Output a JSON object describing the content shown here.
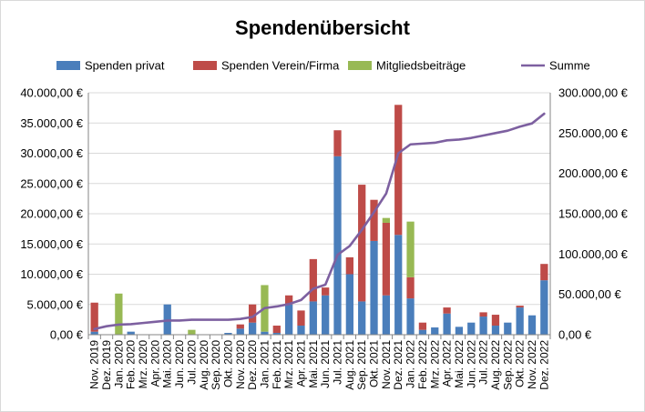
{
  "chart_data": {
    "type": "bar",
    "stacked": true,
    "title": "Spendenübersicht",
    "legend_position": "top",
    "grid": "horizontal",
    "colors": {
      "Spenden privat": "#4a7ebb",
      "Spenden Verein/Firma": "#be4b48",
      "Mitgliedsbeiträge": "#98b954",
      "Summe": "#7d60a0"
    },
    "categories": [
      "Nov. 2019",
      "Dez. 2019",
      "Jan. 2020",
      "Feb. 2020",
      "Mrz. 2020",
      "Apr. 2020",
      "Mai. 2020",
      "Jun. 2020",
      "Jul. 2020",
      "Aug. 2020",
      "Sep. 2020",
      "Okt. 2020",
      "Nov. 2020",
      "Dez. 2020",
      "Jan. 2021",
      "Feb. 2021",
      "Mrz. 2021",
      "Apr. 2021",
      "Mai. 2021",
      "Jun. 2021",
      "Jul. 2021",
      "Aug. 2021",
      "Sep. 2021",
      "Okt. 2021",
      "Nov. 2021",
      "Dez. 2021",
      "Jan. 2022",
      "Feb. 2022",
      "Mrz. 2022",
      "Apr. 2022",
      "Mai. 2022",
      "Jun. 2022",
      "Jul. 2022",
      "Aug. 2022",
      "Sep. 2022",
      "Okt. 2022",
      "Nov. 2022",
      "Dez. 2022"
    ],
    "series": [
      {
        "name": "Spenden privat",
        "axis": "left",
        "type": "bar",
        "values": [
          500,
          0,
          0,
          500,
          0,
          0,
          5000,
          0,
          0,
          0,
          0,
          300,
          1000,
          2000,
          500,
          300,
          5000,
          1500,
          5500,
          6500,
          29500,
          10000,
          5500,
          15500,
          6500,
          16500,
          6000,
          800,
          1200,
          3500,
          1300,
          2000,
          3000,
          1500,
          2000,
          4500,
          3200,
          9000
        ]
      },
      {
        "name": "Spenden Verein/Firma",
        "axis": "left",
        "type": "bar",
        "values": [
          4800,
          0,
          0,
          0,
          0,
          0,
          0,
          0,
          0,
          0,
          0,
          0,
          700,
          3000,
          0,
          1200,
          1500,
          2500,
          7000,
          1300,
          4300,
          2800,
          19300,
          6800,
          12000,
          21500,
          3500,
          1200,
          0,
          1000,
          0,
          0,
          700,
          1800,
          0,
          300,
          0,
          2700
        ]
      },
      {
        "name": "Mitgliedsbeiträge",
        "axis": "left",
        "type": "bar",
        "values": [
          0,
          0,
          6800,
          0,
          0,
          0,
          0,
          0,
          800,
          0,
          0,
          0,
          0,
          0,
          7700,
          0,
          0,
          0,
          0,
          0,
          0,
          0,
          0,
          0,
          800,
          0,
          9200,
          0,
          0,
          0,
          0,
          0,
          0,
          0,
          0,
          0,
          0,
          0
        ]
      },
      {
        "name": "Summe",
        "axis": "right",
        "type": "line",
        "values": [
          7000,
          10500,
          12500,
          13000,
          14500,
          16000,
          17500,
          17500,
          18500,
          18500,
          18500,
          18500,
          19500,
          22000,
          33000,
          35000,
          38000,
          43000,
          57000,
          62000,
          99000,
          110000,
          130000,
          152000,
          175000,
          225000,
          236000,
          237000,
          238000,
          241000,
          242000,
          244000,
          247000,
          250000,
          253000,
          258000,
          262000,
          274000
        ]
      }
    ],
    "y_left": {
      "min": 0,
      "max": 40000,
      "ticks": [
        "0,00 €",
        "5.000,00 €",
        "10.000,00 €",
        "15.000,00 €",
        "20.000,00 €",
        "25.000,00 €",
        "30.000,00 €",
        "35.000,00 €",
        "40.000,00 €"
      ]
    },
    "y_right": {
      "min": 0,
      "max": 300000,
      "ticks": [
        "0,00 €",
        "50.000,00 €",
        "100.000,00 €",
        "150.000,00 €",
        "200.000,00 €",
        "250.000,00 €",
        "300.000,00 €"
      ]
    }
  }
}
